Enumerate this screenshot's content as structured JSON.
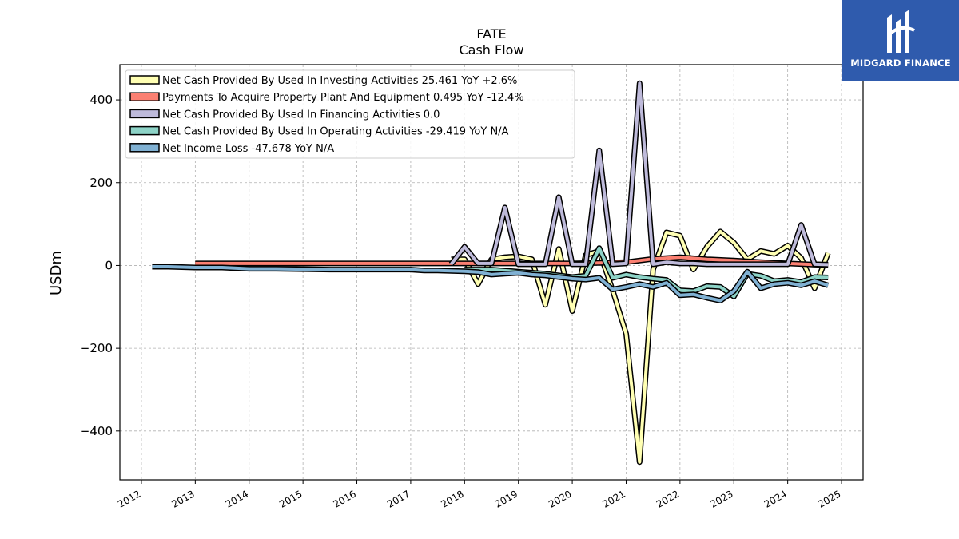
{
  "brand": {
    "name": "MIDGARD FINANCE",
    "background": "#2f5bad"
  },
  "chart_data": {
    "type": "line",
    "title": "FATE",
    "subtitle": "Cash Flow",
    "xlabel": "",
    "ylabel": "USDm",
    "xlim": [
      2011.6,
      2025.4
    ],
    "ylim": [
      -518,
      485
    ],
    "x_ticks": [
      "2012",
      "2013",
      "2014",
      "2015",
      "2016",
      "2017",
      "2018",
      "2019",
      "2020",
      "2021",
      "2022",
      "2023",
      "2024",
      "2025"
    ],
    "y_ticks": [
      -400,
      -200,
      0,
      200,
      400
    ],
    "y_tick_labels": [
      "−400",
      "−200",
      "0",
      "200",
      "400"
    ],
    "grid": true,
    "legend_position": "top-left",
    "series": [
      {
        "name": "Net Cash Provided By Used In Investing Activities",
        "legend_label": "Net Cash Provided By Used In Investing Activities  25.461 YoY +2.6%",
        "color": "#ffffb3",
        "points": [
          [
            2017.75,
            15
          ],
          [
            2018.0,
            15
          ],
          [
            2018.25,
            -45
          ],
          [
            2018.5,
            15
          ],
          [
            2018.75,
            20
          ],
          [
            2019.0,
            22
          ],
          [
            2019.25,
            15
          ],
          [
            2019.5,
            -95
          ],
          [
            2019.75,
            40
          ],
          [
            2020.0,
            -110
          ],
          [
            2020.25,
            25
          ],
          [
            2020.5,
            35
          ],
          [
            2020.75,
            -60
          ],
          [
            2021.0,
            -165
          ],
          [
            2021.25,
            -475
          ],
          [
            2021.5,
            -10
          ],
          [
            2021.75,
            80
          ],
          [
            2022.0,
            72
          ],
          [
            2022.25,
            -10
          ],
          [
            2022.5,
            45
          ],
          [
            2022.75,
            82
          ],
          [
            2023.0,
            55
          ],
          [
            2023.25,
            15
          ],
          [
            2023.5,
            35
          ],
          [
            2023.75,
            28
          ],
          [
            2024.0,
            48
          ],
          [
            2024.25,
            18
          ],
          [
            2024.5,
            -55
          ],
          [
            2024.75,
            30
          ]
        ]
      },
      {
        "name": "Payments To Acquire Property Plant And Equipment",
        "legend_label": "Payments To Acquire Property Plant And Equipment  0.495 YoY -12.4%",
        "color": "#fb8072",
        "points": [
          [
            2013.0,
            5
          ],
          [
            2014.0,
            5
          ],
          [
            2015.0,
            5
          ],
          [
            2016.0,
            5
          ],
          [
            2017.0,
            5
          ],
          [
            2018.0,
            5
          ],
          [
            2019.0,
            5
          ],
          [
            2019.5,
            5
          ],
          [
            2020.0,
            5
          ],
          [
            2020.5,
            6
          ],
          [
            2021.0,
            8
          ],
          [
            2021.5,
            16
          ],
          [
            2022.0,
            20
          ],
          [
            2022.5,
            15
          ],
          [
            2023.0,
            12
          ],
          [
            2023.5,
            8
          ],
          [
            2024.0,
            5
          ],
          [
            2024.5,
            2
          ],
          [
            2024.75,
            1
          ]
        ]
      },
      {
        "name": "Net Cash Provided By Used In Financing Activities",
        "legend_label": "Net Cash Provided By Used In Financing Activities  0.0",
        "color": "#bebada",
        "points": [
          [
            2017.75,
            3
          ],
          [
            2018.0,
            45
          ],
          [
            2018.25,
            5
          ],
          [
            2018.5,
            5
          ],
          [
            2018.75,
            140
          ],
          [
            2019.0,
            3
          ],
          [
            2019.25,
            3
          ],
          [
            2019.5,
            3
          ],
          [
            2019.75,
            165
          ],
          [
            2020.0,
            3
          ],
          [
            2020.25,
            3
          ],
          [
            2020.5,
            278
          ],
          [
            2020.75,
            3
          ],
          [
            2021.0,
            5
          ],
          [
            2021.25,
            440
          ],
          [
            2021.5,
            3
          ],
          [
            2021.75,
            8
          ],
          [
            2022.0,
            5
          ],
          [
            2022.25,
            5
          ],
          [
            2022.5,
            3
          ],
          [
            2022.75,
            3
          ],
          [
            2023.0,
            3
          ],
          [
            2023.25,
            3
          ],
          [
            2023.5,
            3
          ],
          [
            2023.75,
            3
          ],
          [
            2024.0,
            3
          ],
          [
            2024.25,
            98
          ],
          [
            2024.5,
            3
          ],
          [
            2024.75,
            2
          ]
        ]
      },
      {
        "name": "Net Cash Provided By Used In Operating Activities",
        "legend_label": "Net Cash Provided By Used In Operating Activities  -29.419 YoY N/A",
        "color": "#8dd3c7",
        "points": [
          [
            2018.0,
            -10
          ],
          [
            2018.5,
            -10
          ],
          [
            2019.0,
            -15
          ],
          [
            2019.5,
            -20
          ],
          [
            2020.0,
            -28
          ],
          [
            2020.25,
            -25
          ],
          [
            2020.5,
            42
          ],
          [
            2020.75,
            -30
          ],
          [
            2021.0,
            -22
          ],
          [
            2021.25,
            -28
          ],
          [
            2021.5,
            -32
          ],
          [
            2021.75,
            -35
          ],
          [
            2022.0,
            -60
          ],
          [
            2022.25,
            -62
          ],
          [
            2022.5,
            -50
          ],
          [
            2022.75,
            -52
          ],
          [
            2023.0,
            -75
          ],
          [
            2023.25,
            -20
          ],
          [
            2023.5,
            -25
          ],
          [
            2023.75,
            -38
          ],
          [
            2024.0,
            -35
          ],
          [
            2024.25,
            -40
          ],
          [
            2024.5,
            -28
          ],
          [
            2024.75,
            -29
          ]
        ]
      },
      {
        "name": "Net Income Loss",
        "legend_label": "Net Income Loss  -47.678 YoY N/A",
        "color": "#80b1d3",
        "points": [
          [
            2012.2,
            -3
          ],
          [
            2012.5,
            -3
          ],
          [
            2013.0,
            -5
          ],
          [
            2013.5,
            -5
          ],
          [
            2014.0,
            -8
          ],
          [
            2014.5,
            -8
          ],
          [
            2015.0,
            -9
          ],
          [
            2015.5,
            -10
          ],
          [
            2016.0,
            -10
          ],
          [
            2016.5,
            -10
          ],
          [
            2017.0,
            -10
          ],
          [
            2017.25,
            -12
          ],
          [
            2017.5,
            -12
          ],
          [
            2017.75,
            -13
          ],
          [
            2018.0,
            -14
          ],
          [
            2018.25,
            -16
          ],
          [
            2018.5,
            -22
          ],
          [
            2018.75,
            -20
          ],
          [
            2019.0,
            -18
          ],
          [
            2019.25,
            -22
          ],
          [
            2019.5,
            -24
          ],
          [
            2019.75,
            -28
          ],
          [
            2020.0,
            -32
          ],
          [
            2020.25,
            -34
          ],
          [
            2020.5,
            -30
          ],
          [
            2020.75,
            -58
          ],
          [
            2021.0,
            -52
          ],
          [
            2021.25,
            -45
          ],
          [
            2021.5,
            -52
          ],
          [
            2021.75,
            -42
          ],
          [
            2022.0,
            -72
          ],
          [
            2022.25,
            -70
          ],
          [
            2022.5,
            -78
          ],
          [
            2022.75,
            -85
          ],
          [
            2023.0,
            -62
          ],
          [
            2023.25,
            -15
          ],
          [
            2023.5,
            -55
          ],
          [
            2023.75,
            -45
          ],
          [
            2024.0,
            -42
          ],
          [
            2024.25,
            -48
          ],
          [
            2024.5,
            -38
          ],
          [
            2024.75,
            -48
          ]
        ]
      }
    ]
  }
}
